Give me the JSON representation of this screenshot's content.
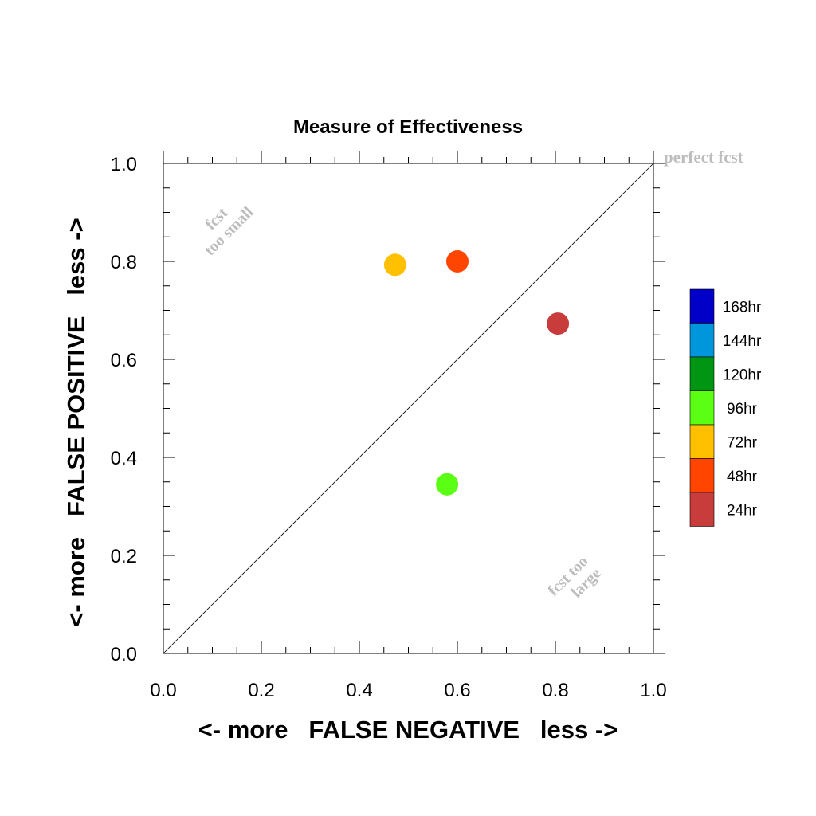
{
  "chart_data": {
    "type": "scatter",
    "title": "Measure of Effectiveness",
    "xlabel": "<- more   FALSE NEGATIVE   less ->",
    "ylabel": "<- more   FALSE POSITIVE   less ->",
    "xlim": [
      0,
      1
    ],
    "ylim": [
      0,
      1
    ],
    "x_ticks": [
      "0.0",
      "0.2",
      "0.4",
      "0.6",
      "0.8",
      "1.0"
    ],
    "y_ticks": [
      "0.0",
      "0.2",
      "0.4",
      "0.6",
      "0.8",
      "1.0"
    ],
    "grid": false,
    "diagonal_line": true,
    "annotations": {
      "perfect": "perfect fcst",
      "small_line1": "fcst",
      "small_line2": "too small",
      "large_line1": "fcst too",
      "large_line2": "large"
    },
    "points": [
      {
        "label": "24hr",
        "x": 0.805,
        "y": 0.673,
        "color": "#c83c3c"
      },
      {
        "label": "48hr",
        "x": 0.6,
        "y": 0.8,
        "color": "#ff4500"
      },
      {
        "label": "72hr",
        "x": 0.473,
        "y": 0.793,
        "color": "#ffc000"
      },
      {
        "label": "96hr",
        "x": 0.579,
        "y": 0.345,
        "color": "#5aff14"
      }
    ],
    "legend": {
      "placement": "right",
      "entries": [
        {
          "label": "168hr",
          "color": "#0000c8"
        },
        {
          "label": "144hr",
          "color": "#0096dc"
        },
        {
          "label": "120hr",
          "color": "#009614"
        },
        {
          "label": "96hr",
          "color": "#5aff14"
        },
        {
          "label": "72hr",
          "color": "#ffc000"
        },
        {
          "label": "48hr",
          "color": "#ff4500"
        },
        {
          "label": "24hr",
          "color": "#c83c3c"
        }
      ]
    }
  }
}
